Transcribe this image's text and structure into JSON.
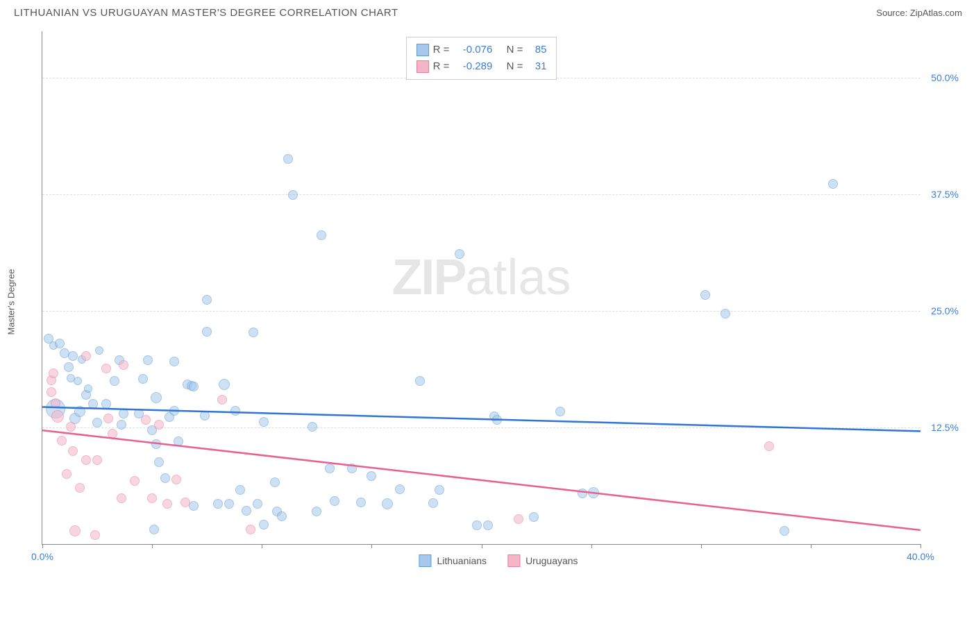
{
  "header": {
    "title": "LITHUANIAN VS URUGUAYAN MASTER'S DEGREE CORRELATION CHART",
    "source_label": "Source:",
    "source_name": "ZipAtlas.com"
  },
  "chart": {
    "type": "scatter",
    "ylabel": "Master's Degree",
    "xlim": [
      0,
      40
    ],
    "ylim": [
      0,
      55
    ],
    "x_ticks": [
      0,
      5,
      10,
      15,
      20,
      25,
      30,
      35,
      40
    ],
    "x_tick_labels": {
      "0": "0.0%",
      "40": "40.0%"
    },
    "y_ticks": [
      12.5,
      25.0,
      37.5,
      50.0
    ],
    "y_tick_labels": [
      "12.5%",
      "25.0%",
      "37.5%",
      "50.0%"
    ],
    "grid_color": "#dddddd",
    "axis_color": "#888888",
    "background_color": "#ffffff",
    "watermark": {
      "bold": "ZIP",
      "light": "atlas"
    },
    "series": [
      {
        "name": "Lithuanians",
        "fill": "#a7c7ec",
        "stroke": "#5b9bd5",
        "fill_opacity": 0.55,
        "trend": {
          "y_at_x0": 14.7,
          "y_at_xmax": 12.1,
          "stroke": "#2e75d6",
          "width": 2.5
        },
        "stats": {
          "R": "-0.076",
          "N": "85"
        },
        "points": [
          {
            "x": 0.3,
            "y": 22.0,
            "r": 7
          },
          {
            "x": 0.5,
            "y": 21.3,
            "r": 6
          },
          {
            "x": 0.6,
            "y": 14.5,
            "r": 14
          },
          {
            "x": 0.8,
            "y": 21.5,
            "r": 7
          },
          {
            "x": 1.0,
            "y": 20.5,
            "r": 7
          },
          {
            "x": 1.2,
            "y": 19.0,
            "r": 7
          },
          {
            "x": 1.3,
            "y": 17.8,
            "r": 6
          },
          {
            "x": 1.4,
            "y": 20.2,
            "r": 7
          },
          {
            "x": 1.6,
            "y": 17.5,
            "r": 6
          },
          {
            "x": 1.8,
            "y": 19.8,
            "r": 6
          },
          {
            "x": 1.5,
            "y": 13.5,
            "r": 8
          },
          {
            "x": 1.7,
            "y": 14.2,
            "r": 8
          },
          {
            "x": 2.0,
            "y": 16.0,
            "r": 7
          },
          {
            "x": 2.1,
            "y": 16.7,
            "r": 6
          },
          {
            "x": 2.3,
            "y": 15.0,
            "r": 7
          },
          {
            "x": 2.6,
            "y": 20.8,
            "r": 6
          },
          {
            "x": 2.5,
            "y": 13.0,
            "r": 7
          },
          {
            "x": 2.9,
            "y": 15.0,
            "r": 7
          },
          {
            "x": 3.3,
            "y": 17.5,
            "r": 7
          },
          {
            "x": 3.5,
            "y": 19.7,
            "r": 7
          },
          {
            "x": 3.6,
            "y": 12.8,
            "r": 7
          },
          {
            "x": 3.7,
            "y": 14.0,
            "r": 7
          },
          {
            "x": 4.8,
            "y": 19.7,
            "r": 7
          },
          {
            "x": 4.6,
            "y": 17.7,
            "r": 7
          },
          {
            "x": 4.4,
            "y": 14.0,
            "r": 7
          },
          {
            "x": 5.0,
            "y": 12.2,
            "r": 7
          },
          {
            "x": 5.2,
            "y": 15.7,
            "r": 8
          },
          {
            "x": 5.2,
            "y": 10.7,
            "r": 7
          },
          {
            "x": 5.1,
            "y": 1.6,
            "r": 7
          },
          {
            "x": 5.6,
            "y": 7.1,
            "r": 7
          },
          {
            "x": 5.3,
            "y": 8.8,
            "r": 7
          },
          {
            "x": 5.8,
            "y": 13.6,
            "r": 7
          },
          {
            "x": 6.0,
            "y": 19.6,
            "r": 7
          },
          {
            "x": 6.0,
            "y": 14.3,
            "r": 7
          },
          {
            "x": 6.2,
            "y": 11.0,
            "r": 7
          },
          {
            "x": 6.6,
            "y": 17.1,
            "r": 7
          },
          {
            "x": 6.8,
            "y": 17.0,
            "r": 7
          },
          {
            "x": 6.9,
            "y": 16.9,
            "r": 7
          },
          {
            "x": 6.9,
            "y": 4.1,
            "r": 7
          },
          {
            "x": 7.4,
            "y": 13.8,
            "r": 7
          },
          {
            "x": 7.5,
            "y": 26.2,
            "r": 7
          },
          {
            "x": 7.5,
            "y": 22.8,
            "r": 7
          },
          {
            "x": 8.0,
            "y": 4.3,
            "r": 7
          },
          {
            "x": 8.3,
            "y": 17.1,
            "r": 8
          },
          {
            "x": 8.5,
            "y": 4.3,
            "r": 7
          },
          {
            "x": 8.8,
            "y": 14.3,
            "r": 7
          },
          {
            "x": 9.0,
            "y": 5.8,
            "r": 7
          },
          {
            "x": 9.3,
            "y": 3.6,
            "r": 7
          },
          {
            "x": 9.6,
            "y": 22.7,
            "r": 7
          },
          {
            "x": 9.8,
            "y": 4.3,
            "r": 7
          },
          {
            "x": 10.1,
            "y": 13.1,
            "r": 7
          },
          {
            "x": 10.1,
            "y": 2.1,
            "r": 7
          },
          {
            "x": 10.6,
            "y": 6.6,
            "r": 7
          },
          {
            "x": 10.7,
            "y": 3.5,
            "r": 7
          },
          {
            "x": 10.9,
            "y": 3.0,
            "r": 7
          },
          {
            "x": 11.2,
            "y": 41.3,
            "r": 7
          },
          {
            "x": 11.4,
            "y": 37.4,
            "r": 7
          },
          {
            "x": 12.3,
            "y": 12.6,
            "r": 7
          },
          {
            "x": 12.5,
            "y": 3.5,
            "r": 7
          },
          {
            "x": 12.7,
            "y": 33.1,
            "r": 7
          },
          {
            "x": 13.1,
            "y": 8.1,
            "r": 7
          },
          {
            "x": 13.3,
            "y": 4.6,
            "r": 7
          },
          {
            "x": 14.1,
            "y": 8.1,
            "r": 7
          },
          {
            "x": 14.5,
            "y": 4.5,
            "r": 7
          },
          {
            "x": 15.0,
            "y": 7.3,
            "r": 7
          },
          {
            "x": 15.7,
            "y": 4.3,
            "r": 8
          },
          {
            "x": 16.3,
            "y": 5.9,
            "r": 7
          },
          {
            "x": 17.2,
            "y": 17.5,
            "r": 7
          },
          {
            "x": 17.8,
            "y": 4.4,
            "r": 7
          },
          {
            "x": 18.1,
            "y": 5.8,
            "r": 7
          },
          {
            "x": 19.0,
            "y": 31.1,
            "r": 7
          },
          {
            "x": 19.8,
            "y": 2.0,
            "r": 7
          },
          {
            "x": 20.3,
            "y": 2.0,
            "r": 7
          },
          {
            "x": 20.6,
            "y": 13.7,
            "r": 7
          },
          {
            "x": 20.7,
            "y": 13.3,
            "r": 7
          },
          {
            "x": 22.4,
            "y": 2.9,
            "r": 7
          },
          {
            "x": 23.6,
            "y": 14.2,
            "r": 7
          },
          {
            "x": 24.6,
            "y": 5.4,
            "r": 7
          },
          {
            "x": 25.1,
            "y": 5.5,
            "r": 8
          },
          {
            "x": 30.2,
            "y": 26.7,
            "r": 7
          },
          {
            "x": 31.1,
            "y": 24.7,
            "r": 7
          },
          {
            "x": 33.8,
            "y": 1.4,
            "r": 7
          },
          {
            "x": 36.0,
            "y": 38.6,
            "r": 7
          }
        ]
      },
      {
        "name": "Uruguayans",
        "fill": "#f4b6c6",
        "stroke": "#e77ba0",
        "fill_opacity": 0.55,
        "trend": {
          "y_at_x0": 12.2,
          "y_at_xmax": 1.5,
          "stroke": "#ea5f8f",
          "width": 2.5
        },
        "stats": {
          "R": "-0.289",
          "N": "31"
        },
        "points": [
          {
            "x": 0.4,
            "y": 17.6,
            "r": 7
          },
          {
            "x": 0.4,
            "y": 16.3,
            "r": 7
          },
          {
            "x": 0.5,
            "y": 18.3,
            "r": 7
          },
          {
            "x": 0.6,
            "y": 15.1,
            "r": 7
          },
          {
            "x": 0.7,
            "y": 13.7,
            "r": 9
          },
          {
            "x": 0.9,
            "y": 11.1,
            "r": 7
          },
          {
            "x": 1.1,
            "y": 7.5,
            "r": 7
          },
          {
            "x": 1.3,
            "y": 12.6,
            "r": 7
          },
          {
            "x": 1.4,
            "y": 10.0,
            "r": 7
          },
          {
            "x": 1.7,
            "y": 6.0,
            "r": 7
          },
          {
            "x": 1.5,
            "y": 1.4,
            "r": 8
          },
          {
            "x": 2.0,
            "y": 20.2,
            "r": 7
          },
          {
            "x": 2.0,
            "y": 9.0,
            "r": 7
          },
          {
            "x": 2.4,
            "y": 1.0,
            "r": 7
          },
          {
            "x": 2.5,
            "y": 9.0,
            "r": 7
          },
          {
            "x": 2.9,
            "y": 18.8,
            "r": 7
          },
          {
            "x": 3.0,
            "y": 13.5,
            "r": 7
          },
          {
            "x": 3.2,
            "y": 11.8,
            "r": 7
          },
          {
            "x": 3.6,
            "y": 4.9,
            "r": 7
          },
          {
            "x": 3.7,
            "y": 19.2,
            "r": 7
          },
          {
            "x": 4.2,
            "y": 6.8,
            "r": 7
          },
          {
            "x": 4.7,
            "y": 13.3,
            "r": 7
          },
          {
            "x": 5.0,
            "y": 4.9,
            "r": 7
          },
          {
            "x": 5.3,
            "y": 12.8,
            "r": 7
          },
          {
            "x": 5.7,
            "y": 4.3,
            "r": 7
          },
          {
            "x": 6.1,
            "y": 6.9,
            "r": 7
          },
          {
            "x": 6.5,
            "y": 4.5,
            "r": 7
          },
          {
            "x": 8.2,
            "y": 15.5,
            "r": 7
          },
          {
            "x": 9.5,
            "y": 1.6,
            "r": 7
          },
          {
            "x": 21.7,
            "y": 2.7,
            "r": 7
          },
          {
            "x": 33.1,
            "y": 10.5,
            "r": 7
          }
        ]
      }
    ],
    "legend_top": {
      "R_label": "R =",
      "N_label": "N ="
    },
    "legend_bottom": [
      {
        "label": "Lithuanians",
        "fill": "#a7c7ec",
        "stroke": "#5b9bd5"
      },
      {
        "label": "Uruguayans",
        "fill": "#f4b6c6",
        "stroke": "#e77ba0"
      }
    ]
  }
}
